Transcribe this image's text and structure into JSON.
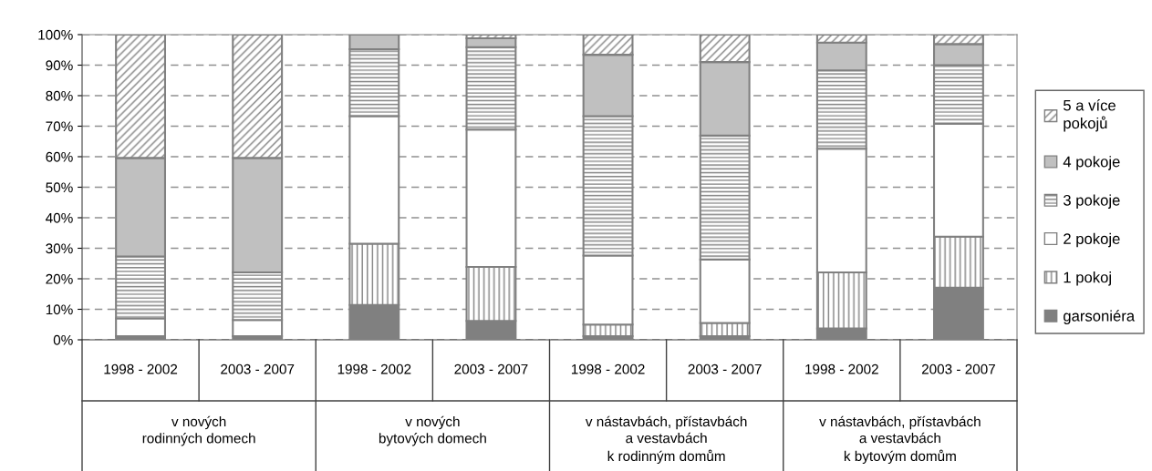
{
  "chart_data": {
    "type": "bar",
    "stacked": true,
    "categories": [
      "1998 - 2002",
      "2003 - 2007",
      "1998 - 2002",
      "2003 - 2007",
      "1998 - 2002",
      "2003 - 2007",
      "1998 - 2002",
      "2003 - 2007"
    ],
    "annotations": [
      "v nových\nrodinných domech",
      "v nových\nbytových domech",
      "v nástavbách, přístavbách\na vestavbách\nk rodinným domům",
      "v nástavbách, přístavbách\na vestavbách\nk bytovým domům"
    ],
    "series": [
      {
        "name": "garsoniéra",
        "color": "#808080",
        "values": [
          1.2,
          1.2,
          11.4,
          6.2,
          1.2,
          1.2,
          3.7,
          17.1
        ]
      },
      {
        "name": "1 pokoj",
        "color": "#808080",
        "values": [
          0,
          0,
          20.1,
          17.7,
          3.8,
          4.3,
          18.4,
          16.7
        ]
      },
      {
        "name": "2 pokoje",
        "color": "#ffffff",
        "values": [
          5.8,
          5.3,
          41.8,
          45.0,
          22.6,
          20.8,
          40.5,
          37.0
        ]
      },
      {
        "name": "3 pokoje",
        "color": "#808080",
        "values": [
          20.3,
          15.6,
          21.9,
          27.0,
          45.7,
          40.6,
          25.7,
          19.2
        ]
      },
      {
        "name": "4 pokoje",
        "color": "#c0c0c0",
        "values": [
          32.3,
          37.5,
          4.8,
          2.9,
          20.1,
          24.1,
          9.1,
          6.9
        ]
      },
      {
        "name": "5 a více\npokojů",
        "color": "#808080",
        "values": [
          40.4,
          40.4,
          0,
          1.2,
          6.6,
          9.0,
          2.6,
          3.1
        ]
      }
    ],
    "ylim": [
      0,
      100
    ],
    "yticks": [
      {
        "value": 0,
        "label": "0%"
      },
      {
        "value": 10,
        "label": "10%"
      },
      {
        "value": 20,
        "label": "20%"
      },
      {
        "value": 30,
        "label": "30%"
      },
      {
        "value": 40,
        "label": "40%"
      },
      {
        "value": 50,
        "label": "50%"
      },
      {
        "value": 60,
        "label": "60%"
      },
      {
        "value": 70,
        "label": "70%"
      },
      {
        "value": 80,
        "label": "80%"
      },
      {
        "value": 90,
        "label": "90%"
      },
      {
        "value": 100,
        "label": "100%"
      }
    ],
    "grid": "y",
    "legend": "right"
  }
}
